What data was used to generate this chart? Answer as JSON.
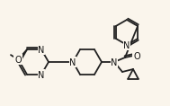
{
  "bg_color": "#faf5ec",
  "line_color": "#222222",
  "text_color": "#111111",
  "bond_width": 1.3,
  "font_size": 7.0
}
